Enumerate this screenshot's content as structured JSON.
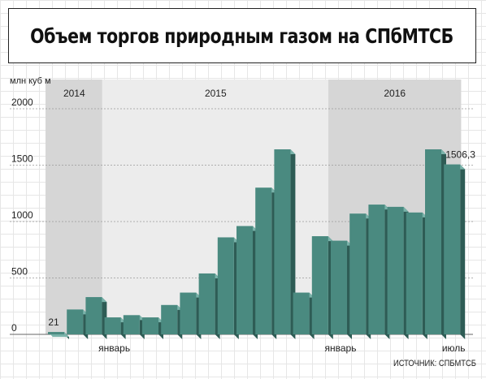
{
  "title": "Объем торгов природным газом на СПбМТСБ",
  "source": "ИСТОЧНИК: СПБМТСБ",
  "colors": {
    "bar_face": "#4a8a80",
    "bar_side": "#2e5c55",
    "bar_top": "#7ab3aa",
    "band_dark": "#d6d6d6",
    "band_light": "#ececec",
    "gridline": "#999999"
  },
  "chart_data": {
    "type": "bar",
    "ylabel": "млн куб м",
    "ylim": [
      0,
      2000
    ],
    "yticks": [
      0,
      500,
      1000,
      1500,
      2000
    ],
    "grid": true,
    "periods": [
      {
        "label": "2014",
        "start": 0,
        "end": 2
      },
      {
        "label": "2015",
        "start": 3,
        "end": 14
      },
      {
        "label": "2016",
        "start": 15,
        "end": 21
      }
    ],
    "categories": [
      "",
      "",
      "",
      "январь",
      "",
      "",
      "",
      "",
      "",
      "",
      "",
      "",
      "",
      "",
      "",
      "январь",
      "",
      "",
      "",
      "",
      "",
      "июль"
    ],
    "values": [
      21,
      220,
      330,
      150,
      170,
      150,
      260,
      370,
      540,
      860,
      960,
      1300,
      1640,
      370,
      870,
      830,
      1070,
      1150,
      1130,
      1080,
      1640,
      1506.3
    ],
    "data_labels": [
      {
        "index": 0,
        "text": "21"
      },
      {
        "index": 21,
        "text": "1506,3"
      }
    ]
  }
}
